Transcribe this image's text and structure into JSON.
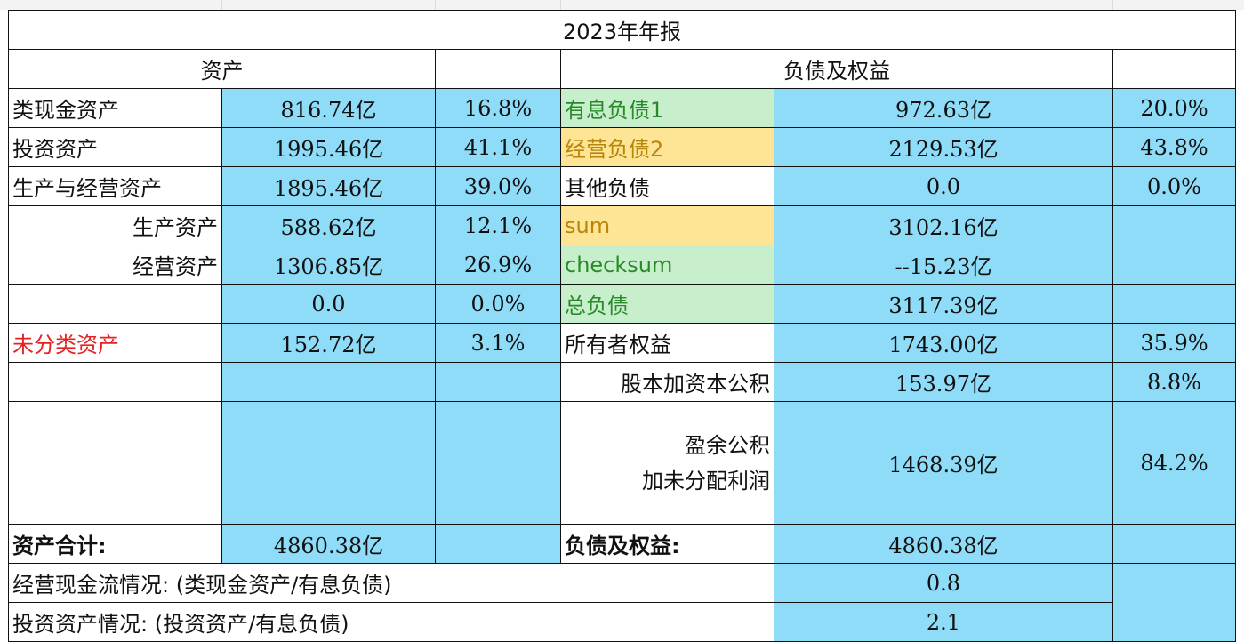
{
  "title": "2023年年报",
  "headers": {
    "assets": "资产",
    "liabilities": "负债及权益"
  },
  "left": {
    "cash_like": {
      "label": "类现金资产",
      "value": "816.74亿",
      "pct": "16.8%"
    },
    "investment": {
      "label": "投资资产",
      "value": "1995.46亿",
      "pct": "41.1%"
    },
    "production_operating": {
      "label": "生产与经营资产",
      "value": "1895.46亿",
      "pct": "39.0%"
    },
    "production": {
      "label": "生产资产",
      "value": "588.62亿",
      "pct": "12.1%"
    },
    "operating": {
      "label": "经营资产",
      "value": "1306.85亿",
      "pct": "26.9%"
    },
    "blank": {
      "value": "0.0",
      "pct": "0.0%"
    },
    "unclassified": {
      "label": "未分类资产",
      "value": "152.72亿",
      "pct": "3.1%"
    },
    "total": {
      "label": "资产合计:",
      "value": "4860.38亿"
    }
  },
  "right": {
    "interest_debt": {
      "label": "有息负债1",
      "value": "972.63亿",
      "pct": "20.0%"
    },
    "operating_debt": {
      "label": "经营负债2",
      "value": "2129.53亿",
      "pct": "43.8%"
    },
    "other_debt": {
      "label": "其他负债",
      "value": "0.0",
      "pct": "0.0%"
    },
    "sum": {
      "label": "sum",
      "value": "3102.16亿"
    },
    "checksum": {
      "label": "checksum",
      "value": "--15.23亿"
    },
    "total_debt": {
      "label": "总负债",
      "value": "3117.39亿"
    },
    "equity": {
      "label": "所有者权益",
      "value": "1743.00亿",
      "pct": "35.9%"
    },
    "capital": {
      "label": "股本加资本公积",
      "value": "153.97亿",
      "pct": "8.8%"
    },
    "surplus": {
      "label_line1": "盈余公积",
      "label_line2": "加未分配利润",
      "value": "1468.39亿",
      "pct": "84.2%"
    },
    "total": {
      "label": "负债及权益:",
      "value": "4860.38亿"
    }
  },
  "ratios": {
    "operating_cash": {
      "label": "经营现金流情况:  (类现金资产/有息负债)",
      "value": "0.8"
    },
    "investment": {
      "label": "投资资产情况:  (投资资产/有息负债)",
      "value": "2.1"
    }
  },
  "colors": {
    "cell_blue": "#8fdcf8",
    "cell_green": "#c8efcc",
    "cell_yellow": "#fde595",
    "text_green": "#2a8a2a",
    "text_gold": "#b8860b",
    "text_red": "#e52222"
  }
}
